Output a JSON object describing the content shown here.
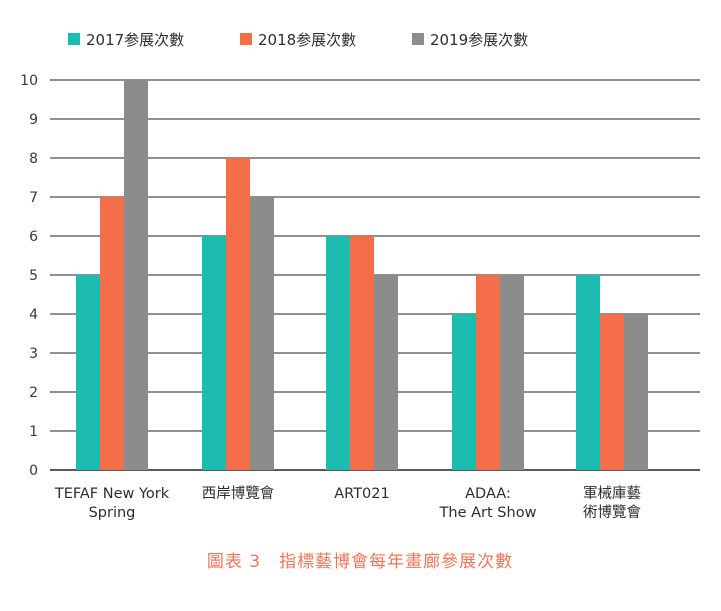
{
  "chart_data": {
    "type": "bar",
    "title": "",
    "xlabel": "",
    "ylabel": "",
    "ylim": [
      0,
      10
    ],
    "yticks": [
      0,
      1,
      2,
      3,
      4,
      5,
      6,
      7,
      8,
      9,
      10
    ],
    "grid": true,
    "legend_position": "top-left",
    "categories": [
      [
        "TEFAF New York",
        "Spring"
      ],
      [
        "西岸博覽會"
      ],
      [
        "ART021"
      ],
      [
        "ADAA:",
        "The Art Show"
      ],
      [
        "軍械庫藝",
        "術博覽會"
      ]
    ],
    "series": [
      {
        "name": "2017参展次數",
        "color": "#1dbcb1",
        "values": [
          5,
          6,
          6,
          4,
          5
        ]
      },
      {
        "name": "2018参展次數",
        "color": "#f46e4a",
        "values": [
          7,
          8,
          6,
          5,
          4
        ]
      },
      {
        "name": "2019参展次數",
        "color": "#8c8c8c",
        "values": [
          10,
          7,
          5,
          5,
          4
        ]
      }
    ]
  },
  "caption": "圖表 3　指標藝博會每年畫廊參展次數",
  "colors": {
    "grid": "#222222",
    "caption": "#f0765a"
  }
}
